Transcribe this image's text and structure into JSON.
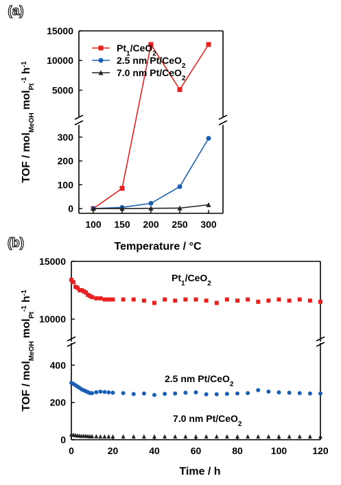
{
  "chart_data": [
    {
      "panel_label": "(a)",
      "type": "line",
      "xlabel": "Temperature / °C",
      "ylabel": {
        "main": "TOF / mol",
        "sub1": "MeOH",
        "mid": " mol",
        "sub2": "Pt",
        "tail": " h",
        "sup": "-1",
        "sup2": "-1"
      },
      "x": [
        100,
        150,
        200,
        250,
        300
      ],
      "x_ticks": [
        100,
        150,
        200,
        250,
        300
      ],
      "xlim": [
        75,
        325
      ],
      "y_axis_break": true,
      "y_lower_range": [
        -20,
        340
      ],
      "y_lower_ticks": [
        0,
        100,
        200,
        300
      ],
      "y_upper_range": [
        1000,
        15000
      ],
      "y_upper_ticks": [
        5000,
        10000,
        15000
      ],
      "legend_position": "top-left",
      "series": [
        {
          "name": {
            "a": "Pt",
            "sub": "1",
            "b": "/CeO",
            "sub2": "2"
          },
          "color": "#e8201f",
          "marker": "square",
          "values": [
            0,
            85,
            12700,
            5100,
            12700
          ]
        },
        {
          "name": {
            "a": "2.5 nm Pt/CeO",
            "sub": "",
            "b": "",
            "sub2": "2"
          },
          "color": "#1a5fb4",
          "marker": "circle",
          "values": [
            0,
            5,
            22,
            92,
            295
          ]
        },
        {
          "name": {
            "a": "7.0 nm Pt/CeO",
            "sub": "",
            "b": "",
            "sub2": "2"
          },
          "color": "#222222",
          "marker": "triangle",
          "values": [
            0,
            0,
            1,
            2,
            16
          ]
        }
      ]
    },
    {
      "panel_label": "(b)",
      "type": "scatter",
      "xlabel": "Time / h",
      "ylabel": {
        "main": "TOF / mol",
        "sub1": "MeOH",
        "mid": " mol",
        "sub2": "Pt",
        "tail": " h",
        "sup": "-1",
        "sup2": "-1"
      },
      "xlim": [
        0,
        120
      ],
      "x_ticks": [
        0,
        20,
        40,
        60,
        80,
        100,
        120
      ],
      "y_axis_break": true,
      "y_lower_range": [
        0,
        460
      ],
      "y_lower_ticks": [
        0,
        200,
        400
      ],
      "y_upper_range": [
        9000,
        15000
      ],
      "y_upper_ticks": [
        10000,
        15000
      ],
      "series": [
        {
          "name": {
            "a": "Pt",
            "sub": "1",
            "b": "/CeO",
            "sub2": "2"
          },
          "color": "#e8201f",
          "marker": "square",
          "x": [
            0,
            1,
            2,
            3,
            4,
            5,
            6,
            7,
            8,
            9,
            10,
            12,
            14,
            16,
            18,
            20,
            25,
            30,
            35,
            40,
            45,
            50,
            55,
            60,
            65,
            70,
            75,
            80,
            85,
            90,
            95,
            100,
            105,
            110,
            115,
            120
          ],
          "y": [
            13400,
            13200,
            12800,
            12700,
            12500,
            12500,
            12400,
            12300,
            12100,
            12000,
            11900,
            11800,
            11800,
            11700,
            11700,
            11700,
            11700,
            11700,
            11600,
            11400,
            11700,
            11600,
            11700,
            11700,
            11600,
            11400,
            11700,
            11600,
            11700,
            11500,
            11600,
            11700,
            11600,
            11700,
            11600,
            11500
          ]
        },
        {
          "name": {
            "a": "2.5 nm Pt/CeO",
            "sub": "",
            "b": "",
            "sub2": "2"
          },
          "color": "#1a5fb4",
          "marker": "circle",
          "x": [
            0,
            1,
            2,
            3,
            4,
            5,
            6,
            7,
            8,
            9,
            10,
            12,
            14,
            16,
            18,
            20,
            25,
            30,
            35,
            40,
            45,
            50,
            55,
            60,
            65,
            70,
            75,
            80,
            85,
            90,
            95,
            100,
            105,
            110,
            115,
            120
          ],
          "y": [
            305,
            300,
            292,
            285,
            278,
            270,
            265,
            260,
            255,
            250,
            250,
            255,
            258,
            256,
            254,
            252,
            250,
            245,
            248,
            240,
            246,
            248,
            252,
            254,
            244,
            244,
            246,
            248,
            250,
            266,
            258,
            254,
            252,
            250,
            248,
            248
          ]
        },
        {
          "name": {
            "a": "7.0 nm Pt/CeO",
            "sub": "",
            "b": "",
            "sub2": "2"
          },
          "color": "#222222",
          "marker": "triangle",
          "x": [
            0,
            1,
            2,
            3,
            4,
            5,
            6,
            7,
            8,
            9,
            10,
            12,
            14,
            16,
            18,
            20,
            25,
            30,
            35,
            40,
            45,
            50,
            55,
            60,
            65,
            70,
            75,
            80,
            85,
            90,
            95,
            100,
            105,
            110,
            115,
            120
          ],
          "y": [
            28,
            26,
            24,
            22,
            21,
            20,
            20,
            20,
            19,
            18,
            18,
            18,
            17,
            17,
            17,
            17,
            17,
            17,
            17,
            17,
            17,
            17,
            17,
            17,
            17,
            17,
            17,
            17,
            17,
            17,
            17,
            17,
            17,
            17,
            17,
            17
          ]
        }
      ]
    }
  ]
}
